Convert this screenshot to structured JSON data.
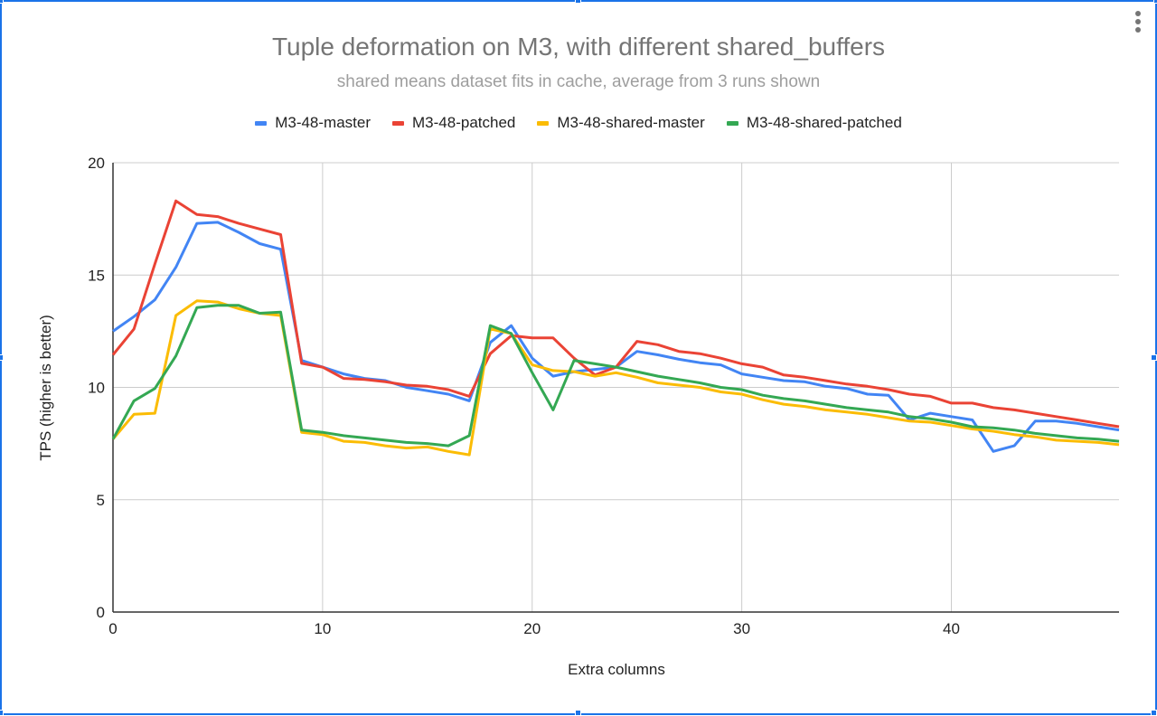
{
  "menu_icon": "more-vert-icon",
  "chart_data": {
    "type": "line",
    "title": "Tuple deformation on M3, with different shared_buffers",
    "subtitle": "shared means dataset fits in cache, average from 3 runs shown",
    "xlabel": "Extra columns",
    "ylabel": "TPS (higher is better)",
    "xlim": [
      0,
      48
    ],
    "ylim": [
      0,
      20
    ],
    "x_ticks": [
      0,
      10,
      20,
      30,
      40
    ],
    "y_ticks": [
      0,
      5,
      10,
      15,
      20
    ],
    "grid": true,
    "legend_position": "top",
    "x": [
      0,
      1,
      2,
      3,
      4,
      5,
      6,
      7,
      8,
      9,
      10,
      11,
      12,
      13,
      14,
      15,
      16,
      17,
      18,
      19,
      20,
      21,
      22,
      23,
      24,
      25,
      26,
      27,
      28,
      29,
      30,
      31,
      32,
      33,
      34,
      35,
      36,
      37,
      38,
      39,
      40,
      41,
      42,
      43,
      44,
      45,
      46,
      47,
      48
    ],
    "series": [
      {
        "name": "M3-48-master",
        "color": "#4285f4",
        "values": [
          12.5,
          13.15,
          13.9,
          15.35,
          17.3,
          17.35,
          16.9,
          16.4,
          16.15,
          11.2,
          10.9,
          10.6,
          10.4,
          10.3,
          10.0,
          9.85,
          9.7,
          9.4,
          12.0,
          12.75,
          11.3,
          10.5,
          10.7,
          10.8,
          10.9,
          11.6,
          11.45,
          11.25,
          11.1,
          11.0,
          10.6,
          10.45,
          10.3,
          10.25,
          10.05,
          9.95,
          9.7,
          9.65,
          8.55,
          8.85,
          8.7,
          8.55,
          7.15,
          7.4,
          8.5,
          8.5,
          8.4,
          8.25,
          8.1
        ]
      },
      {
        "name": "M3-48-patched",
        "color": "#ea4335",
        "values": [
          11.45,
          12.6,
          15.5,
          18.3,
          17.7,
          17.6,
          17.3,
          17.05,
          16.8,
          11.07,
          10.9,
          10.4,
          10.35,
          10.25,
          10.1,
          10.05,
          9.9,
          9.6,
          11.5,
          12.3,
          12.2,
          12.2,
          11.3,
          10.55,
          10.9,
          12.05,
          11.9,
          11.6,
          11.5,
          11.3,
          11.05,
          10.9,
          10.55,
          10.45,
          10.3,
          10.15,
          10.05,
          9.9,
          9.7,
          9.6,
          9.3,
          9.3,
          9.1,
          9.0,
          8.85,
          8.7,
          8.55,
          8.4,
          8.25
        ]
      },
      {
        "name": "M3-48-shared-master",
        "color": "#fbbc04",
        "values": [
          7.7,
          8.8,
          8.85,
          13.2,
          13.85,
          13.8,
          13.5,
          13.3,
          13.2,
          8.0,
          7.9,
          7.6,
          7.55,
          7.4,
          7.3,
          7.35,
          7.15,
          7.0,
          12.6,
          12.4,
          11.0,
          10.75,
          10.7,
          10.5,
          10.65,
          10.45,
          10.2,
          10.1,
          10.0,
          9.8,
          9.7,
          9.45,
          9.25,
          9.15,
          9.0,
          8.9,
          8.8,
          8.65,
          8.5,
          8.45,
          8.3,
          8.15,
          8.05,
          7.9,
          7.8,
          7.65,
          7.6,
          7.55,
          7.45
        ]
      },
      {
        "name": "M3-48-shared-patched",
        "color": "#34a853",
        "values": [
          7.7,
          9.4,
          9.95,
          11.4,
          13.55,
          13.65,
          13.65,
          13.3,
          13.35,
          8.1,
          8.0,
          7.85,
          7.75,
          7.65,
          7.55,
          7.5,
          7.4,
          7.85,
          12.75,
          12.4,
          10.65,
          9.0,
          11.2,
          11.05,
          10.9,
          10.7,
          10.5,
          10.35,
          10.2,
          10.0,
          9.9,
          9.65,
          9.5,
          9.4,
          9.25,
          9.1,
          9.0,
          8.9,
          8.7,
          8.6,
          8.45,
          8.25,
          8.2,
          8.1,
          7.95,
          7.85,
          7.75,
          7.7,
          7.6
        ]
      }
    ]
  }
}
